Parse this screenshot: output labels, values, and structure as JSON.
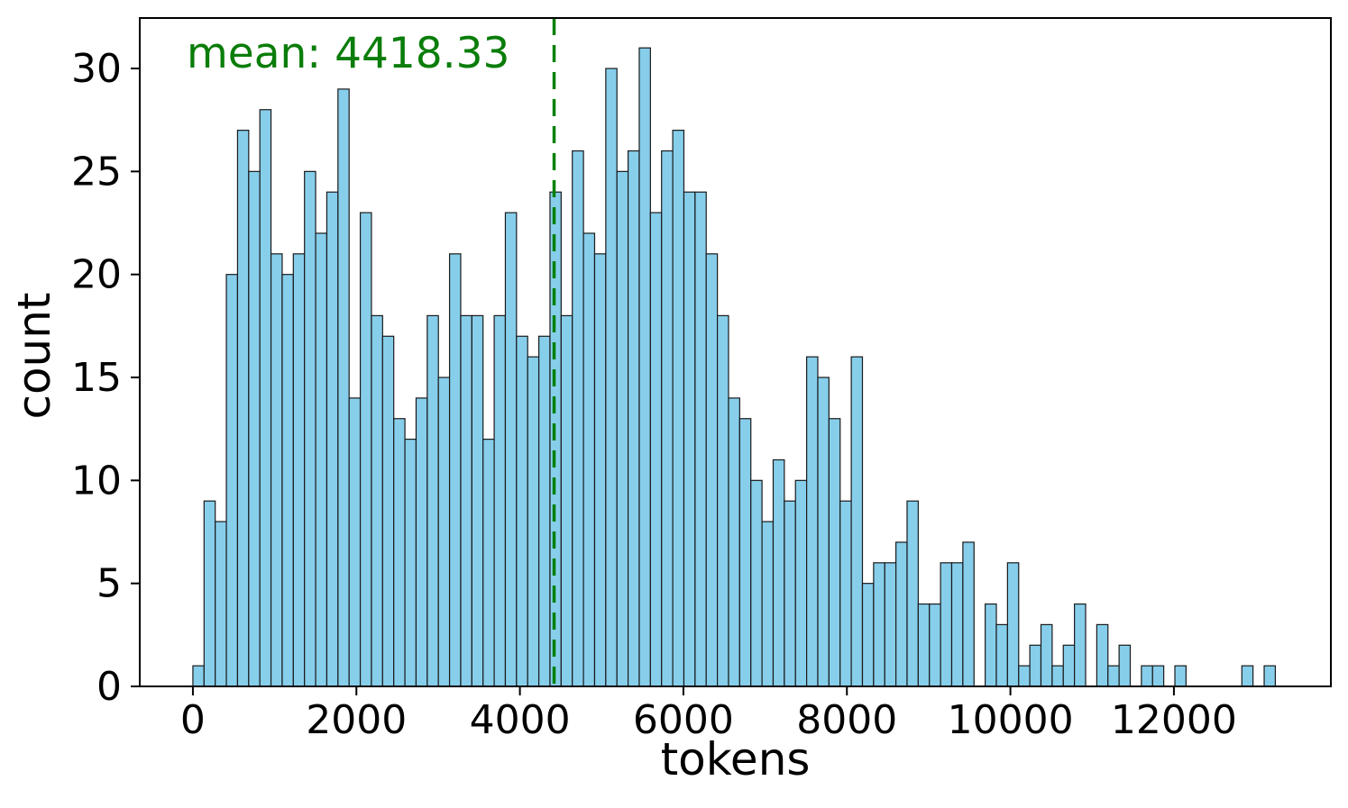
{
  "chart_data": {
    "type": "bar",
    "subtype": "histogram",
    "annotation": {
      "text": "mean: 4418.33",
      "color": "#0a7d0a"
    },
    "mean_value": 4418.33,
    "xlabel": "tokens",
    "ylabel": "count",
    "x_ticks": [
      0,
      2000,
      4000,
      6000,
      8000,
      10000,
      12000
    ],
    "y_ticks": [
      0,
      5,
      10,
      15,
      20,
      25,
      30
    ],
    "xlim": [
      -650,
      13920
    ],
    "ylim": [
      0,
      32.45
    ],
    "grid": "off",
    "legend": "none",
    "bins": {
      "start_tokens": 0,
      "width_tokens": 136.5,
      "count": 97
    },
    "counts": [
      1,
      9,
      8,
      20,
      27,
      25,
      28,
      21,
      20,
      21,
      25,
      22,
      24,
      29,
      14,
      23,
      18,
      17,
      13,
      12,
      14,
      18,
      15,
      21,
      18,
      18,
      12,
      18,
      23,
      17,
      16,
      17,
      24,
      18,
      26,
      22,
      21,
      30,
      25,
      26,
      31,
      23,
      26,
      27,
      24,
      24,
      21,
      18,
      14,
      13,
      10,
      8,
      11,
      9,
      10,
      16,
      15,
      13,
      9,
      16,
      5,
      6,
      6,
      7,
      9,
      4,
      4,
      6,
      6,
      7,
      0,
      4,
      3,
      6,
      1,
      2,
      3,
      1,
      2,
      4,
      0,
      3,
      1,
      2,
      0,
      1,
      1,
      0,
      1,
      0,
      0,
      0,
      0,
      0,
      1,
      0,
      1
    ],
    "colors": {
      "bar_fill": "#87ceeb",
      "bar_edge": "#1a1a1a",
      "mean_line": "#008000",
      "axis": "#000000",
      "background": "#ffffff"
    }
  }
}
